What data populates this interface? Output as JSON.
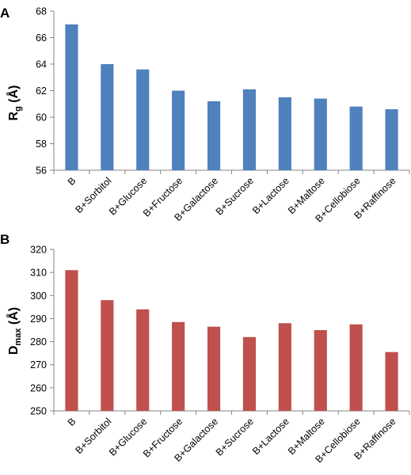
{
  "chart_data": [
    {
      "panel_label": "A",
      "type": "bar",
      "ylabel_main": "R",
      "ylabel_sub": "g",
      "ylabel_unit": " (Å)",
      "categories": [
        "B",
        "B+Sorbitol",
        "B+Glucose",
        "B+Fructose",
        "B+Galactose",
        "B+Sucrose",
        "B+Lactose",
        "B+Maltose",
        "B+Cellobiose",
        "B+Raffinose"
      ],
      "values": [
        67.0,
        64.0,
        63.6,
        62.0,
        61.2,
        62.1,
        61.5,
        61.4,
        60.8,
        60.6
      ],
      "ylim": [
        56,
        68
      ],
      "yticks": [
        "56",
        "58",
        "60",
        "62",
        "64",
        "66",
        "68"
      ],
      "color": "#4f81bd",
      "grid": false
    },
    {
      "panel_label": "B",
      "type": "bar",
      "ylabel_main": "D",
      "ylabel_sub": "max",
      "ylabel_unit": " (Å)",
      "categories": [
        "B",
        "B+Sorbitol",
        "B+Glucose",
        "B+Fructose",
        "B+Galactose",
        "B+Sucrose",
        "B+Lactose",
        "B+Maltose",
        "B+Cellobiose",
        "B+Raffinose"
      ],
      "values": [
        311,
        298,
        294,
        288.5,
        286.5,
        282,
        288,
        285,
        287.5,
        275.5
      ],
      "ylim": [
        250,
        320
      ],
      "yticks": [
        "250",
        "260",
        "270",
        "280",
        "290",
        "300",
        "310",
        "320"
      ],
      "color": "#c0504d",
      "grid": false
    }
  ]
}
